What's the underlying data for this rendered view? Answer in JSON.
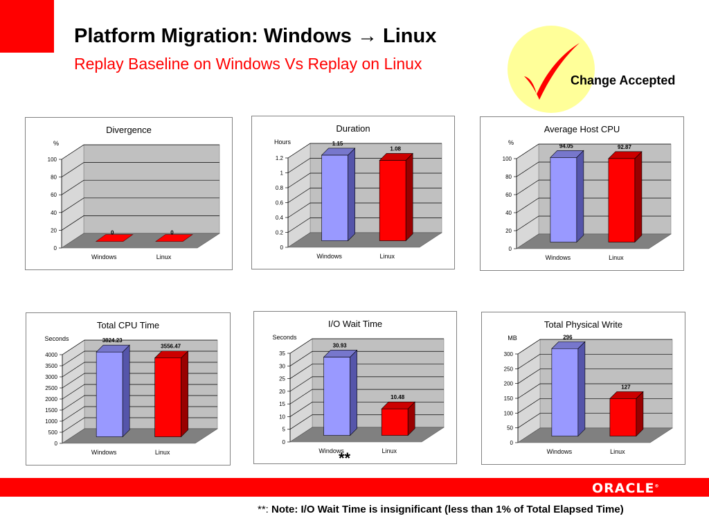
{
  "header": {
    "title": "Platform Migration: Windows → Linux",
    "subtitle": "Replay Baseline on Windows Vs Replay on Linux"
  },
  "badge": {
    "label": "Change Accepted",
    "icon": "checkmark-icon",
    "circle_color": "#ffff99",
    "check_color": "#ff0000"
  },
  "colors": {
    "windows_front": "#9999ff",
    "windows_side": "#5555aa",
    "windows_top": "#7777cc",
    "linux_front": "#ff0000",
    "linux_side": "#990000",
    "linux_top": "#cc0000",
    "wall": "#c0c0c0",
    "floor": "#808080",
    "brand_red": "#ff0000"
  },
  "footer": {
    "logo": "ORACLE",
    "stars": "**",
    "note_prefix": "**:",
    "note": "Note: I/O Wait Time is insignificant (less than 1% of Total Elapsed Time)"
  },
  "chart_data": [
    {
      "type": "bar",
      "title": "Divergence",
      "ylabel": "%",
      "categories": [
        "Windows",
        "Linux"
      ],
      "values": [
        0,
        0
      ],
      "value_labels": [
        "0",
        "0"
      ],
      "ylim": [
        0,
        100
      ],
      "yticks": [
        "0",
        "20",
        "40",
        "60",
        "80",
        "100"
      ],
      "grid": true,
      "style": "3d"
    },
    {
      "type": "bar",
      "title": "Duration",
      "ylabel": "Hours",
      "categories": [
        "Windows",
        "Linux"
      ],
      "values": [
        1.15,
        1.08
      ],
      "value_labels": [
        "1.15",
        "1.08"
      ],
      "ylim": [
        0,
        1.2
      ],
      "yticks": [
        "0",
        "0.2",
        "0.4",
        "0.6",
        "0.8",
        "1",
        "1.2"
      ],
      "grid": true,
      "style": "3d"
    },
    {
      "type": "bar",
      "title": "Average Host CPU",
      "ylabel": "%",
      "categories": [
        "Windows",
        "Linux"
      ],
      "values": [
        94.05,
        92.87
      ],
      "value_labels": [
        "94.05",
        "92.87"
      ],
      "ylim": [
        0,
        100
      ],
      "yticks": [
        "0",
        "20",
        "40",
        "60",
        "80",
        "100"
      ],
      "grid": true,
      "style": "3d"
    },
    {
      "type": "bar",
      "title": "Total CPU Time",
      "ylabel": "Seconds",
      "categories": [
        "Windows",
        "Linux"
      ],
      "values": [
        3824.23,
        3556.47
      ],
      "value_labels": [
        "3824.23",
        "3556.47"
      ],
      "ylim": [
        0,
        4000
      ],
      "yticks": [
        "0",
        "500",
        "1000",
        "1500",
        "2000",
        "2500",
        "3000",
        "3500",
        "4000"
      ],
      "grid": true,
      "style": "3d"
    },
    {
      "type": "bar",
      "title": "I/O Wait Time",
      "ylabel": "Seconds",
      "categories": [
        "Windows",
        "Linux"
      ],
      "values": [
        30.93,
        10.48
      ],
      "value_labels": [
        "30.93",
        "10.48"
      ],
      "ylim": [
        0,
        35
      ],
      "yticks": [
        "0",
        "5",
        "10",
        "15",
        "20",
        "25",
        "30",
        "35"
      ],
      "grid": true,
      "style": "3d"
    },
    {
      "type": "bar",
      "title": "Total Physical Write",
      "ylabel": "MB",
      "categories": [
        "Windows",
        "Linux"
      ],
      "values": [
        296,
        127
      ],
      "value_labels": [
        "296",
        "127"
      ],
      "ylim": [
        0,
        300
      ],
      "yticks": [
        "0",
        "50",
        "100",
        "150",
        "200",
        "250",
        "300"
      ],
      "grid": true,
      "style": "3d"
    }
  ]
}
